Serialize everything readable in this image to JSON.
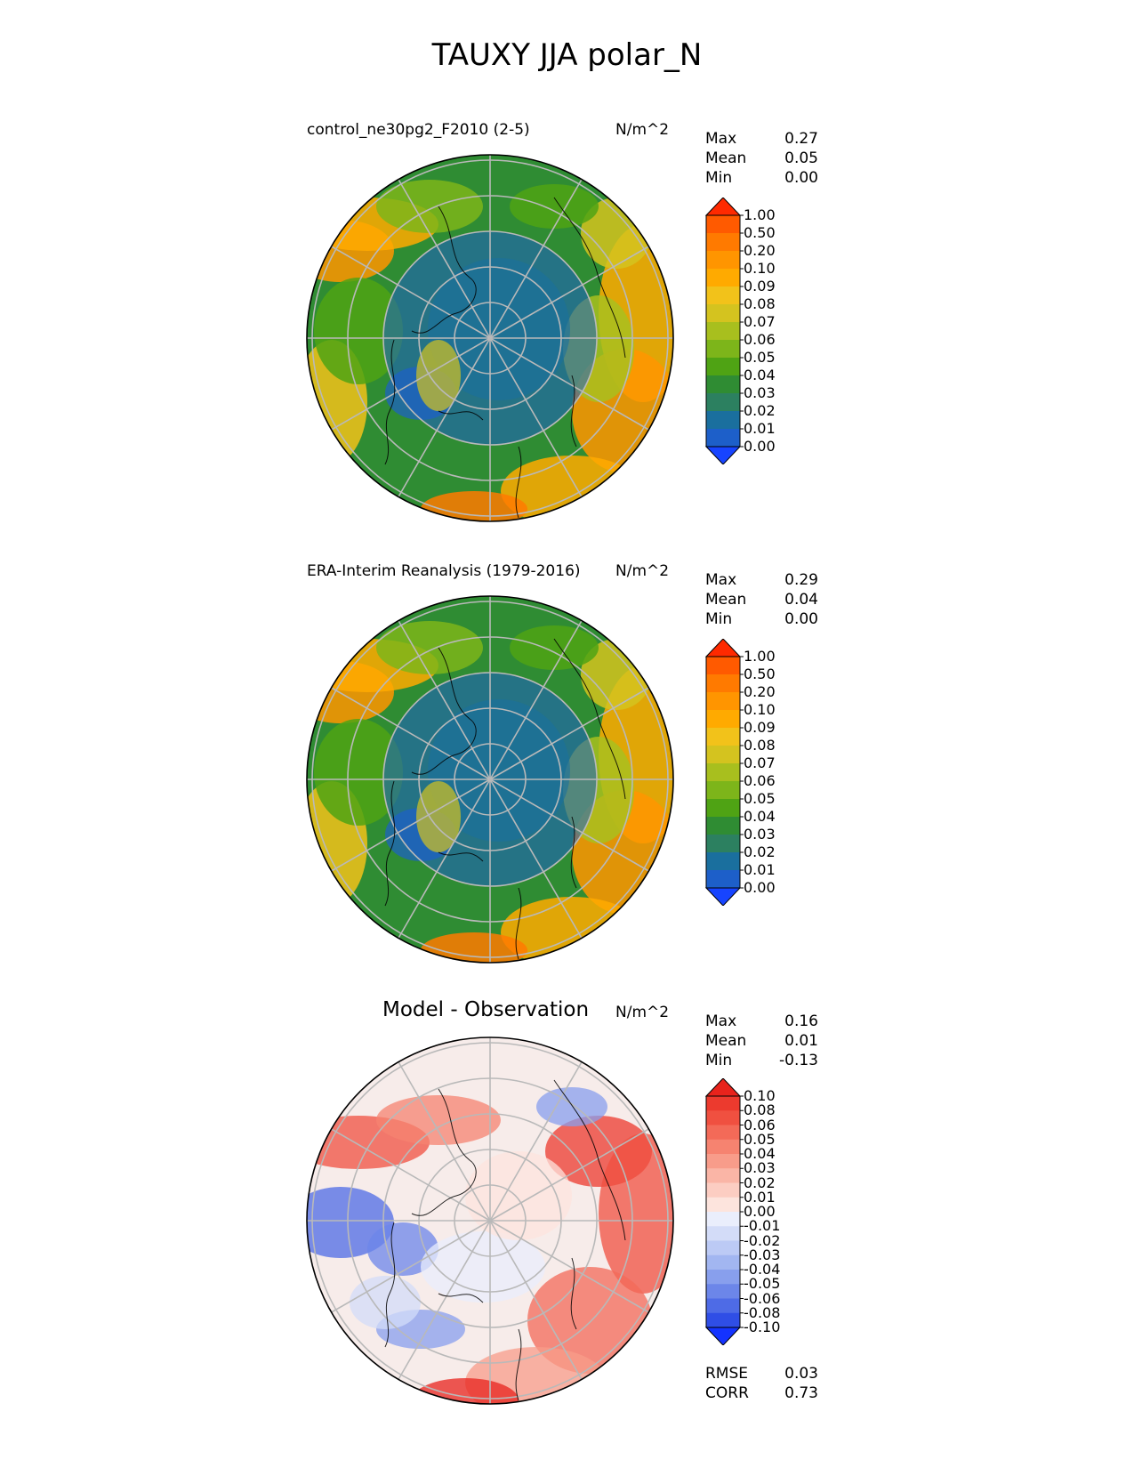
{
  "figure": {
    "title": "TAUXY JJA polar_N"
  },
  "panels": [
    {
      "id": "test",
      "title": "control_ne30pg2_F2010 (2-5)",
      "units": "N/m^2",
      "stats": [
        {
          "label": "Max",
          "value": "0.27"
        },
        {
          "label": "Mean",
          "value": "0.05"
        },
        {
          "label": "Min",
          "value": "0.00"
        }
      ],
      "colorbar": {
        "colormap": "WhiteBlueGreenYellowRed",
        "levels": [
          "1.00",
          "0.50",
          "0.20",
          "0.10",
          "0.09",
          "0.08",
          "0.07",
          "0.06",
          "0.05",
          "0.04",
          "0.03",
          "0.02",
          "0.01",
          "0.00"
        ],
        "colors": [
          "#ff2a00",
          "#ff5a00",
          "#ff7a00",
          "#ff9500",
          "#ffaa00",
          "#f2c21a",
          "#d4c31f",
          "#a8bf1e",
          "#7db51a",
          "#4fa314",
          "#2f8c33",
          "#2c8060",
          "#1a6f9e",
          "#1d5fc9",
          "#1744ff"
        ]
      },
      "map_style": "absolute"
    },
    {
      "id": "reference",
      "title": "ERA-Interim Reanalysis (1979-2016)",
      "units": "N/m^2",
      "stats": [
        {
          "label": "Max",
          "value": "0.29"
        },
        {
          "label": "Mean",
          "value": "0.04"
        },
        {
          "label": "Min",
          "value": "0.00"
        }
      ],
      "colorbar": {
        "colormap": "WhiteBlueGreenYellowRed",
        "levels": [
          "1.00",
          "0.50",
          "0.20",
          "0.10",
          "0.09",
          "0.08",
          "0.07",
          "0.06",
          "0.05",
          "0.04",
          "0.03",
          "0.02",
          "0.01",
          "0.00"
        ],
        "colors": [
          "#ff2a00",
          "#ff5a00",
          "#ff7a00",
          "#ff9500",
          "#ffaa00",
          "#f2c21a",
          "#d4c31f",
          "#a8bf1e",
          "#7db51a",
          "#4fa314",
          "#2f8c33",
          "#2c8060",
          "#1a6f9e",
          "#1d5fc9",
          "#1744ff"
        ]
      },
      "map_style": "absolute"
    },
    {
      "id": "diff",
      "title": "Model - Observation",
      "units": "N/m^2",
      "stats": [
        {
          "label": "Max",
          "value": "0.16"
        },
        {
          "label": "Mean",
          "value": "0.01"
        },
        {
          "label": "Min",
          "value": "-0.13"
        }
      ],
      "colorbar": {
        "colormap": "diverging_bwr",
        "levels": [
          "0.10",
          "0.08",
          "0.06",
          "0.05",
          "0.04",
          "0.03",
          "0.02",
          "0.01",
          "0.00",
          "-0.01",
          "-0.02",
          "-0.03",
          "-0.04",
          "-0.05",
          "-0.06",
          "-0.08",
          "-0.10"
        ],
        "colors": [
          "#e8231c",
          "#ec3a2e",
          "#f05040",
          "#f36a58",
          "#f68370",
          "#f89c8a",
          "#fab5a6",
          "#fccdc2",
          "#fde4dd",
          "#eaeefc",
          "#d3dcf8",
          "#bccaf5",
          "#a2b6f1",
          "#889fed",
          "#6c86e9",
          "#4e6be6",
          "#2f4ee6",
          "#1433ff"
        ]
      },
      "map_style": "difference",
      "metrics": [
        {
          "label": "RMSE",
          "value": "0.03"
        },
        {
          "label": "CORR",
          "value": "0.73"
        }
      ]
    }
  ],
  "chart_data": [
    {
      "type": "heatmap",
      "title": "control_ne30pg2_F2010 (2-5)",
      "projection": "north polar stereographic",
      "variable": "TAUXY",
      "season": "JJA",
      "region": "polar_N",
      "units": "N/m^2",
      "max": 0.27,
      "mean": 0.05,
      "min": 0.0,
      "contour_levels": [
        0.0,
        0.01,
        0.02,
        0.03,
        0.04,
        0.05,
        0.06,
        0.07,
        0.08,
        0.09,
        0.1,
        0.2,
        0.5,
        1.0
      ]
    },
    {
      "type": "heatmap",
      "title": "ERA-Interim Reanalysis (1979-2016)",
      "projection": "north polar stereographic",
      "variable": "TAUXY",
      "season": "JJA",
      "region": "polar_N",
      "units": "N/m^2",
      "max": 0.29,
      "mean": 0.04,
      "min": 0.0,
      "contour_levels": [
        0.0,
        0.01,
        0.02,
        0.03,
        0.04,
        0.05,
        0.06,
        0.07,
        0.08,
        0.09,
        0.1,
        0.2,
        0.5,
        1.0
      ]
    },
    {
      "type": "heatmap",
      "title": "Model - Observation",
      "projection": "north polar stereographic",
      "variable": "TAUXY",
      "season": "JJA",
      "region": "polar_N",
      "units": "N/m^2",
      "max": 0.16,
      "mean": 0.01,
      "min": -0.13,
      "rmse": 0.03,
      "corr": 0.73,
      "contour_levels": [
        -0.1,
        -0.08,
        -0.06,
        -0.05,
        -0.04,
        -0.03,
        -0.02,
        -0.01,
        0.0,
        0.01,
        0.02,
        0.03,
        0.04,
        0.05,
        0.06,
        0.08,
        0.1
      ]
    }
  ]
}
